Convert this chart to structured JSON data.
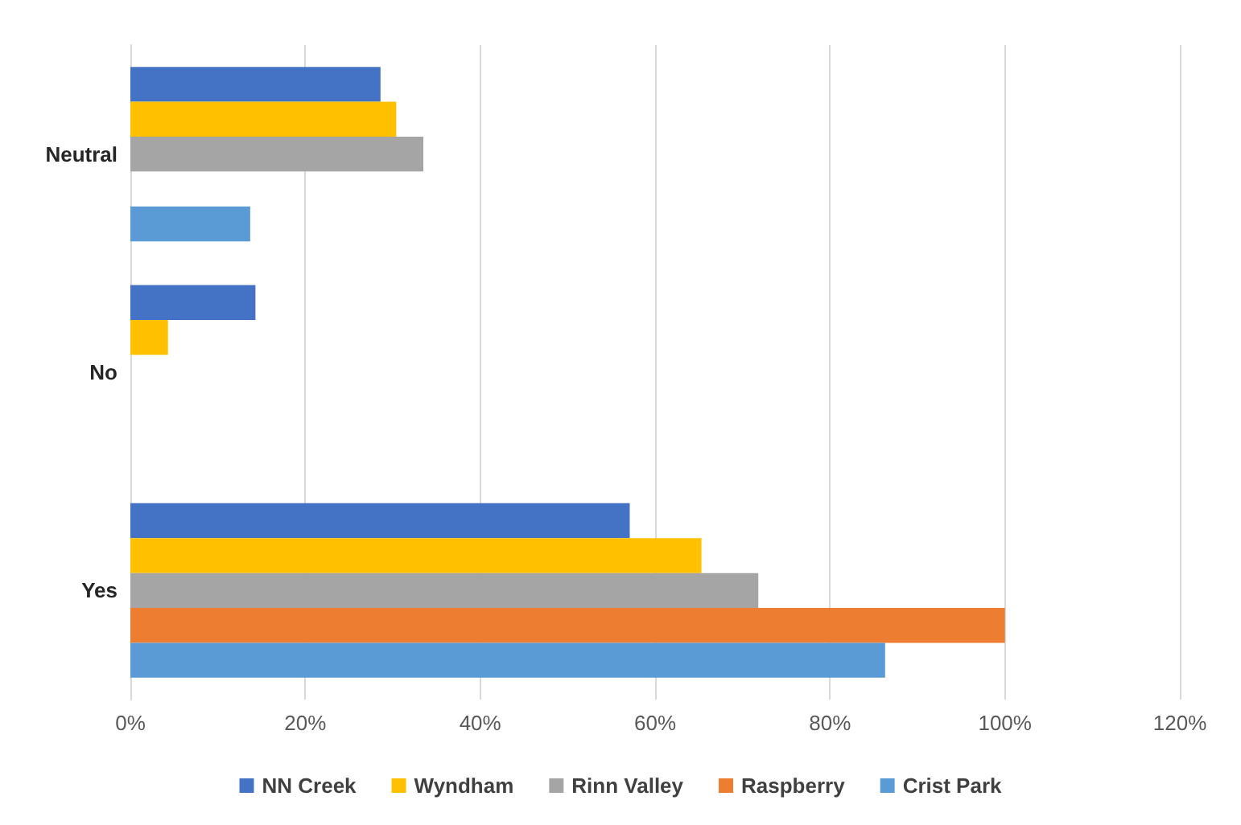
{
  "chart_data": {
    "type": "bar",
    "orientation": "horizontal",
    "categories": [
      "Neutral",
      "No",
      "Yes"
    ],
    "series": [
      {
        "name": "NN Creek",
        "color": "#4472c4",
        "values": [
          28.6,
          14.3,
          57.1
        ]
      },
      {
        "name": "Wyndham",
        "color": "#ffc000",
        "values": [
          30.4,
          4.3,
          65.3
        ]
      },
      {
        "name": "Rinn Valley",
        "color": "#a5a5a5",
        "values": [
          33.5,
          0,
          71.8
        ]
      },
      {
        "name": "Raspberry",
        "color": "#ed7d31",
        "values": [
          0,
          0,
          100
        ]
      },
      {
        "name": "Crist Park",
        "color": "#5b9bd5",
        "values": [
          13.7,
          0,
          86.3
        ]
      }
    ],
    "xlim": [
      0,
      120
    ],
    "xticks": [
      {
        "value": 0,
        "label": "0%"
      },
      {
        "value": 20,
        "label": "20%"
      },
      {
        "value": 40,
        "label": "40%"
      },
      {
        "value": 60,
        "label": "60%"
      },
      {
        "value": 80,
        "label": "80%"
      },
      {
        "value": 100,
        "label": "100%"
      },
      {
        "value": 120,
        "label": "120%"
      }
    ],
    "grid": "x",
    "legend": "bottom"
  }
}
